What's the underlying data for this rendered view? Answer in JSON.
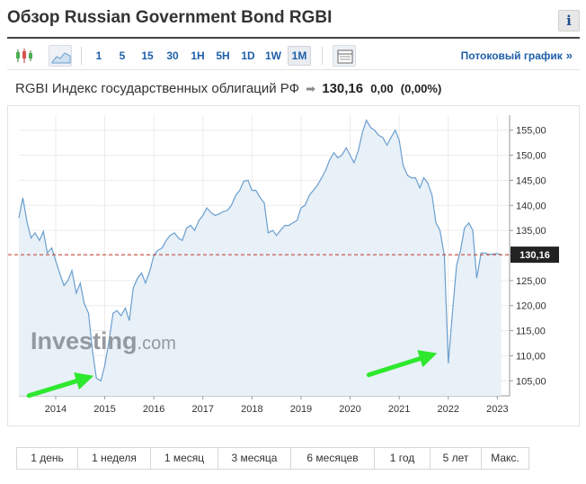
{
  "header": {
    "title": "Обзор Russian Government Bond RGBI",
    "info_label": "i"
  },
  "toolbar": {
    "chart_type_icons": [
      "candlestick-icon",
      "area-chart-icon"
    ],
    "intervals": [
      "1",
      "5",
      "15",
      "30",
      "1H",
      "5H",
      "1D",
      "1W",
      "1M"
    ],
    "active_interval": "1M",
    "grid_icon": "table-icon",
    "stream_link": "Потоковый график",
    "stream_arrow": "»"
  },
  "quote": {
    "name": "RGBI Индекс государственных облигаций РФ",
    "arrow": "➡",
    "price": "130,16",
    "change": "0,00",
    "change_pct": "(0,00%)"
  },
  "watermark": {
    "brand": "Investing",
    "domain": ".com"
  },
  "periods": [
    "1 день",
    "1 неделя",
    "1 месяц",
    "3 месяца",
    "6 месяцев",
    "1 год",
    "5 лет",
    "Макс."
  ],
  "colors": {
    "line": "#6a9fce",
    "fill": "#e8f0f8",
    "ref_line": "#c0392b",
    "arrow": "#2ee82e",
    "price_label_bg": "#222222"
  },
  "chart_data": {
    "type": "area",
    "x_ticks": [
      "2014",
      "2015",
      "2016",
      "2017",
      "2018",
      "2019",
      "2020",
      "2021",
      "2022",
      "2023"
    ],
    "y_ticks": [
      "105,00",
      "110,00",
      "115,00",
      "120,00",
      "125,00",
      "130,00",
      "135,00",
      "140,00",
      "145,00",
      "150,00",
      "155,00"
    ],
    "ylim": [
      102,
      158
    ],
    "xlim": [
      2013.25,
      2023.25
    ],
    "last_value_label": "130,16",
    "reference_value": 130.16,
    "grid": true,
    "annotations": [
      {
        "type": "arrow",
        "points_to": [
          2014.92,
          106.0
        ]
      },
      {
        "type": "arrow",
        "points_to": [
          2021.92,
          110.5
        ]
      }
    ],
    "series": [
      {
        "x": [
          2013.25,
          2013.33,
          2013.42,
          2013.5,
          2013.58,
          2013.67,
          2013.75,
          2013.83,
          2013.92,
          2014.0,
          2014.08,
          2014.17,
          2014.25,
          2014.33,
          2014.42,
          2014.5,
          2014.58,
          2014.67,
          2014.75,
          2014.83,
          2014.92,
          2015.0,
          2015.08,
          2015.17,
          2015.25,
          2015.33,
          2015.42,
          2015.5,
          2015.58,
          2015.67,
          2015.75,
          2015.83,
          2015.92,
          2016.0,
          2016.08,
          2016.17,
          2016.25,
          2016.33,
          2016.42,
          2016.5,
          2016.58,
          2016.67,
          2016.75,
          2016.83,
          2016.92,
          2017.0,
          2017.08,
          2017.17,
          2017.25,
          2017.33,
          2017.42,
          2017.5,
          2017.58,
          2017.67,
          2017.75,
          2017.83,
          2017.92,
          2018.0,
          2018.08,
          2018.17,
          2018.25,
          2018.33,
          2018.42,
          2018.5,
          2018.58,
          2018.67,
          2018.75,
          2018.83,
          2018.92,
          2019.0,
          2019.08,
          2019.17,
          2019.25,
          2019.33,
          2019.42,
          2019.5,
          2019.58,
          2019.67,
          2019.75,
          2019.83,
          2019.92,
          2020.0,
          2020.08,
          2020.17,
          2020.25,
          2020.33,
          2020.42,
          2020.5,
          2020.58,
          2020.67,
          2020.75,
          2020.83,
          2020.92,
          2021.0,
          2021.08,
          2021.17,
          2021.25,
          2021.33,
          2021.42,
          2021.5,
          2021.58,
          2021.67,
          2021.75,
          2021.83,
          2021.92,
          2022.0,
          2022.08,
          2022.17,
          2022.25,
          2022.33,
          2022.42,
          2022.5,
          2022.58,
          2022.67,
          2022.75,
          2022.83,
          2022.92,
          2023.0,
          2023.08
        ],
        "values": [
          137.5,
          141.5,
          136.5,
          133.5,
          134.5,
          133.0,
          134.8,
          130.5,
          131.5,
          129.0,
          126.5,
          124.0,
          125.0,
          127.0,
          122.5,
          124.5,
          120.5,
          118.5,
          111.0,
          105.5,
          105.0,
          108.0,
          112.5,
          118.5,
          119.0,
          118.0,
          119.5,
          117.0,
          123.5,
          125.5,
          126.5,
          124.5,
          127.0,
          130.0,
          131.0,
          131.5,
          133.0,
          134.0,
          134.5,
          133.5,
          133.0,
          135.5,
          136.0,
          135.0,
          137.0,
          138.0,
          139.5,
          138.5,
          138.0,
          138.3,
          138.8,
          139.0,
          140.0,
          142.0,
          143.0,
          144.8,
          145.0,
          143.0,
          143.0,
          141.5,
          140.5,
          134.5,
          135.0,
          134.0,
          135.0,
          136.0,
          136.0,
          136.5,
          137.0,
          139.5,
          140.0,
          142.0,
          143.0,
          144.0,
          145.5,
          147.0,
          149.0,
          150.5,
          149.5,
          150.0,
          151.5,
          150.0,
          148.5,
          151.0,
          154.5,
          157.0,
          155.5,
          155.0,
          154.0,
          153.5,
          152.0,
          153.5,
          155.0,
          153.0,
          148.0,
          146.0,
          145.5,
          145.5,
          143.5,
          145.5,
          144.5,
          142.0,
          136.5,
          135.0,
          130.0,
          108.5,
          118.0,
          128.0,
          131.0,
          135.5,
          136.5,
          135.0,
          125.5,
          130.5,
          130.5,
          130.2,
          130.3,
          130.4,
          130.16
        ]
      }
    ]
  }
}
